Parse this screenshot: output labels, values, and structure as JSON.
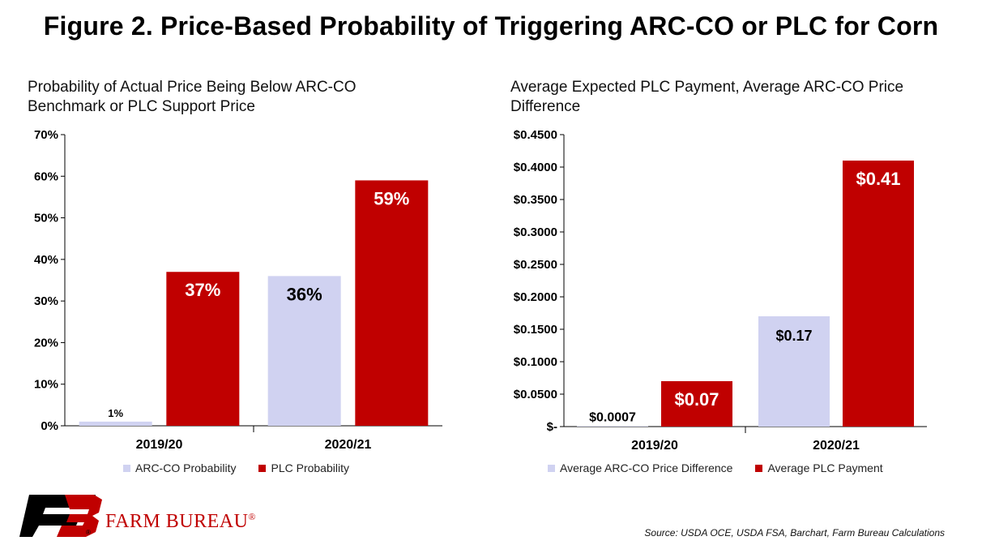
{
  "title": "Figure 2. Price-Based Probability of Triggering ARC-CO or PLC for Corn",
  "source": "Source: USDA OCE, USDA FSA, Barchart, Farm Bureau Calculations",
  "brand": {
    "name": "FARM BUREAU",
    "registered": "®",
    "mark_registered": "®",
    "color": "#c00000"
  },
  "colors": {
    "arc": "#d0d2f1",
    "plc": "#c00000"
  },
  "chart_data": [
    {
      "type": "bar",
      "title": "Probability of Actual Price Being Below ARC-CO Benchmark or PLC Support Price",
      "categories": [
        "2019/20",
        "2020/21"
      ],
      "series": [
        {
          "name": "ARC-CO Probability",
          "values": [
            1,
            36
          ],
          "labels": [
            "1%",
            "36%"
          ]
        },
        {
          "name": "PLC Probability",
          "values": [
            37,
            59
          ],
          "labels": [
            "37%",
            "59%"
          ]
        }
      ],
      "ylim": [
        0,
        70
      ],
      "yticks": [
        0,
        10,
        20,
        30,
        40,
        50,
        60,
        70
      ],
      "ytick_labels": [
        "0%",
        "10%",
        "20%",
        "30%",
        "40%",
        "50%",
        "60%",
        "70%"
      ],
      "legend": "bottom",
      "grid": false
    },
    {
      "type": "bar",
      "title": "Average Expected PLC Payment, Average ARC-CO Price Difference",
      "categories": [
        "2019/20",
        "2020/21"
      ],
      "series": [
        {
          "name": "Average ARC-CO Price Difference",
          "values": [
            0.0007,
            0.17
          ],
          "labels": [
            "$0.0007",
            "$0.17"
          ]
        },
        {
          "name": "Average PLC Payment",
          "values": [
            0.07,
            0.41
          ],
          "labels": [
            "$0.07",
            "$0.41"
          ]
        }
      ],
      "ylim": [
        0,
        0.45
      ],
      "yticks": [
        0,
        0.05,
        0.1,
        0.15,
        0.2,
        0.25,
        0.3,
        0.35,
        0.4,
        0.45
      ],
      "ytick_labels": [
        "$-",
        "$0.0500",
        "$0.1000",
        "$0.1500",
        "$0.2000",
        "$0.2500",
        "$0.3000",
        "$0.3500",
        "$0.4000",
        "$0.4500"
      ],
      "legend": "bottom",
      "grid": false
    }
  ]
}
